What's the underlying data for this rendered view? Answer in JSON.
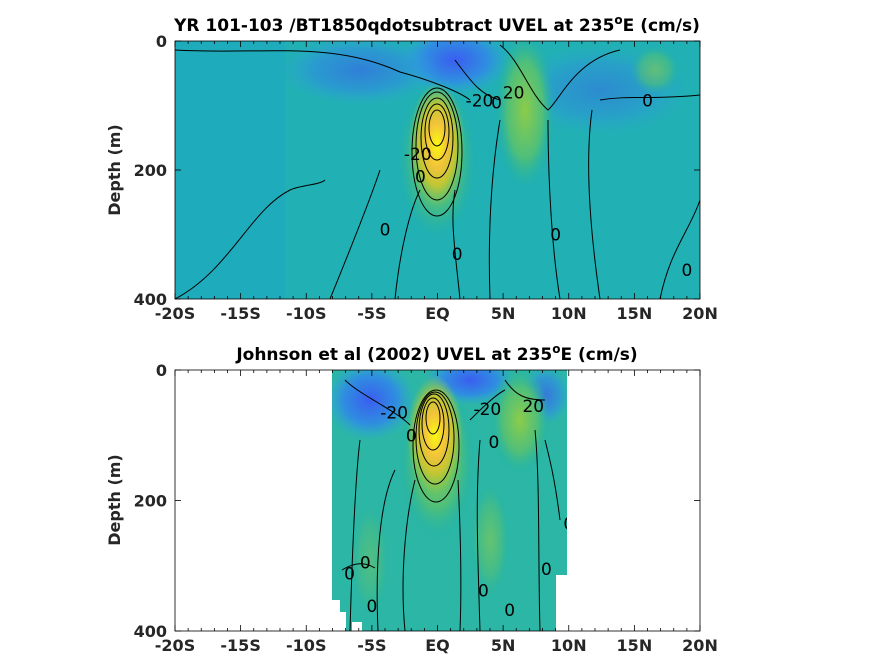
{
  "chart_data": [
    {
      "type": "heatmap",
      "title": "YR 101-103 /BT1850qdotsubtract UVEL at 235ºE (cm/s)",
      "title_main": "YR 101-103 /BT1850qdotsubtract UVEL at 235",
      "title_sup": "o",
      "title_tail": "E (cm/s)",
      "ylabel": "Depth (m)",
      "xlim": [
        -20,
        20
      ],
      "ylim": [
        400,
        0
      ],
      "x_tick_values": [
        -20,
        -15,
        -10,
        -5,
        0,
        5,
        10,
        15,
        20
      ],
      "x_tick_labels": [
        "-20S",
        "-15S",
        "-10S",
        "-5S",
        "EQ",
        "5N",
        "10N",
        "15N",
        "20N"
      ],
      "y_tick_values": [
        0,
        200,
        400
      ],
      "y_tick_labels": [
        "0",
        "200",
        "400"
      ],
      "data_extent": [
        -20,
        20
      ],
      "features": [
        {
          "kind": "jet_core",
          "lon": 0,
          "depth": 130,
          "value": 100
        },
        {
          "kind": "westward_surface",
          "lon": 2.5,
          "depth": 30,
          "value": -35
        },
        {
          "kind": "westward_surface",
          "lon": -3,
          "depth": 25,
          "value": -20
        },
        {
          "kind": "eastward_necc",
          "lon": 7,
          "depth": 60,
          "value": 30
        },
        {
          "kind": "westward_surface",
          "lon": 14,
          "depth": 40,
          "value": -15
        }
      ],
      "contour_labels": [
        {
          "text": "-20",
          "lon": 3.2,
          "depth": 92
        },
        {
          "text": "20",
          "lon": 5.8,
          "depth": 80
        },
        {
          "text": "0",
          "lon": 4.5,
          "depth": 95
        },
        {
          "text": "0",
          "lon": 16,
          "depth": 92
        },
        {
          "text": "-20",
          "lon": -1.5,
          "depth": 175
        },
        {
          "text": "0",
          "lon": -1.3,
          "depth": 210
        },
        {
          "text": "0",
          "lon": -4,
          "depth": 292
        },
        {
          "text": "0",
          "lon": 1.5,
          "depth": 330
        },
        {
          "text": "0",
          "lon": 9,
          "depth": 300
        },
        {
          "text": "0",
          "lon": 19,
          "depth": 355
        }
      ]
    },
    {
      "type": "heatmap",
      "title": "Johnson et al (2002) UVEL at 235ºE (cm/s)",
      "title_main": "Johnson et al (2002) UVEL at 235",
      "title_sup": "o",
      "title_tail": "E (cm/s)",
      "ylabel": "Depth (m)",
      "xlim": [
        -20,
        20
      ],
      "ylim": [
        400,
        0
      ],
      "x_tick_values": [
        -20,
        -15,
        -10,
        -5,
        0,
        5,
        10,
        15,
        20
      ],
      "x_tick_labels": [
        "-20S",
        "-15S",
        "-10S",
        "-5S",
        "EQ",
        "5N",
        "10N",
        "15N",
        "20N"
      ],
      "y_tick_values": [
        0,
        200,
        400
      ],
      "y_tick_labels": [
        "0",
        "200",
        "400"
      ],
      "data_extent": [
        -8,
        10
      ],
      "features": [
        {
          "kind": "jet_core",
          "lon": 0,
          "depth": 90,
          "value": 110
        },
        {
          "kind": "westward_surface",
          "lon": 2.5,
          "depth": 15,
          "value": -40
        },
        {
          "kind": "westward_surface",
          "lon": -5,
          "depth": 30,
          "value": -30
        },
        {
          "kind": "eastward_necc",
          "lon": 7,
          "depth": 40,
          "value": 25
        }
      ],
      "contour_labels": [
        {
          "text": "-20",
          "lon": -3.3,
          "depth": 65
        },
        {
          "text": "-20",
          "lon": 3.8,
          "depth": 60
        },
        {
          "text": "20",
          "lon": 7.3,
          "depth": 55
        },
        {
          "text": "0",
          "lon": -2,
          "depth": 100
        },
        {
          "text": "0",
          "lon": 4.3,
          "depth": 110
        },
        {
          "text": "0",
          "lon": 10,
          "depth": 235
        },
        {
          "text": "0",
          "lon": -5.5,
          "depth": 295
        },
        {
          "text": "0",
          "lon": -6.7,
          "depth": 312
        },
        {
          "text": "0",
          "lon": 8.3,
          "depth": 305
        },
        {
          "text": "0",
          "lon": 3.5,
          "depth": 338
        },
        {
          "text": "0",
          "lon": -5,
          "depth": 362
        },
        {
          "text": "0",
          "lon": 5.5,
          "depth": 368
        }
      ]
    }
  ]
}
